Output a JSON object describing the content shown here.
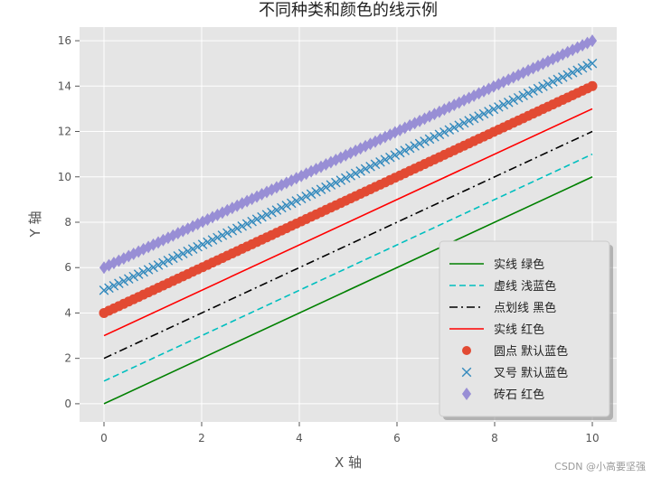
{
  "chart_data": {
    "type": "line",
    "title": "不同种类和颜色的线示例",
    "xlabel": "X 轴",
    "ylabel": "Y 轴",
    "xlim": [
      -0.5,
      10.5
    ],
    "ylim": [
      -0.8,
      16.6
    ],
    "xticks": [
      0,
      2,
      4,
      6,
      8,
      10
    ],
    "yticks": [
      0,
      2,
      4,
      6,
      8,
      10,
      12,
      14,
      16
    ],
    "grid": true,
    "legend_position": "lower-right",
    "x_range": [
      0,
      10
    ],
    "series": [
      {
        "name": "实线 绿色",
        "style": "solid",
        "marker": "none",
        "color": "#008000",
        "values": [
          0,
          10
        ]
      },
      {
        "name": "虚线 浅蓝色",
        "style": "dashed",
        "marker": "none",
        "color": "#00bfbf",
        "values": [
          1,
          11
        ]
      },
      {
        "name": "点划线 黑色",
        "style": "dashdot",
        "marker": "none",
        "color": "#000000",
        "values": [
          2,
          12
        ]
      },
      {
        "name": "实线 红色",
        "style": "solid",
        "marker": "none",
        "color": "#ff0000",
        "values": [
          3,
          13
        ]
      },
      {
        "name": "圆点 默认蓝色",
        "style": "none",
        "marker": "circle",
        "color": "#e24a33",
        "values": [
          4,
          14
        ]
      },
      {
        "name": "叉号 默认蓝色",
        "style": "none",
        "marker": "x",
        "color": "#348abd",
        "values": [
          5,
          15
        ]
      },
      {
        "name": "砖石 红色",
        "style": "none",
        "marker": "diamond",
        "color": "#988ed5",
        "values": [
          6,
          16
        ]
      }
    ]
  },
  "watermark": "CSDN @小高要坚强"
}
